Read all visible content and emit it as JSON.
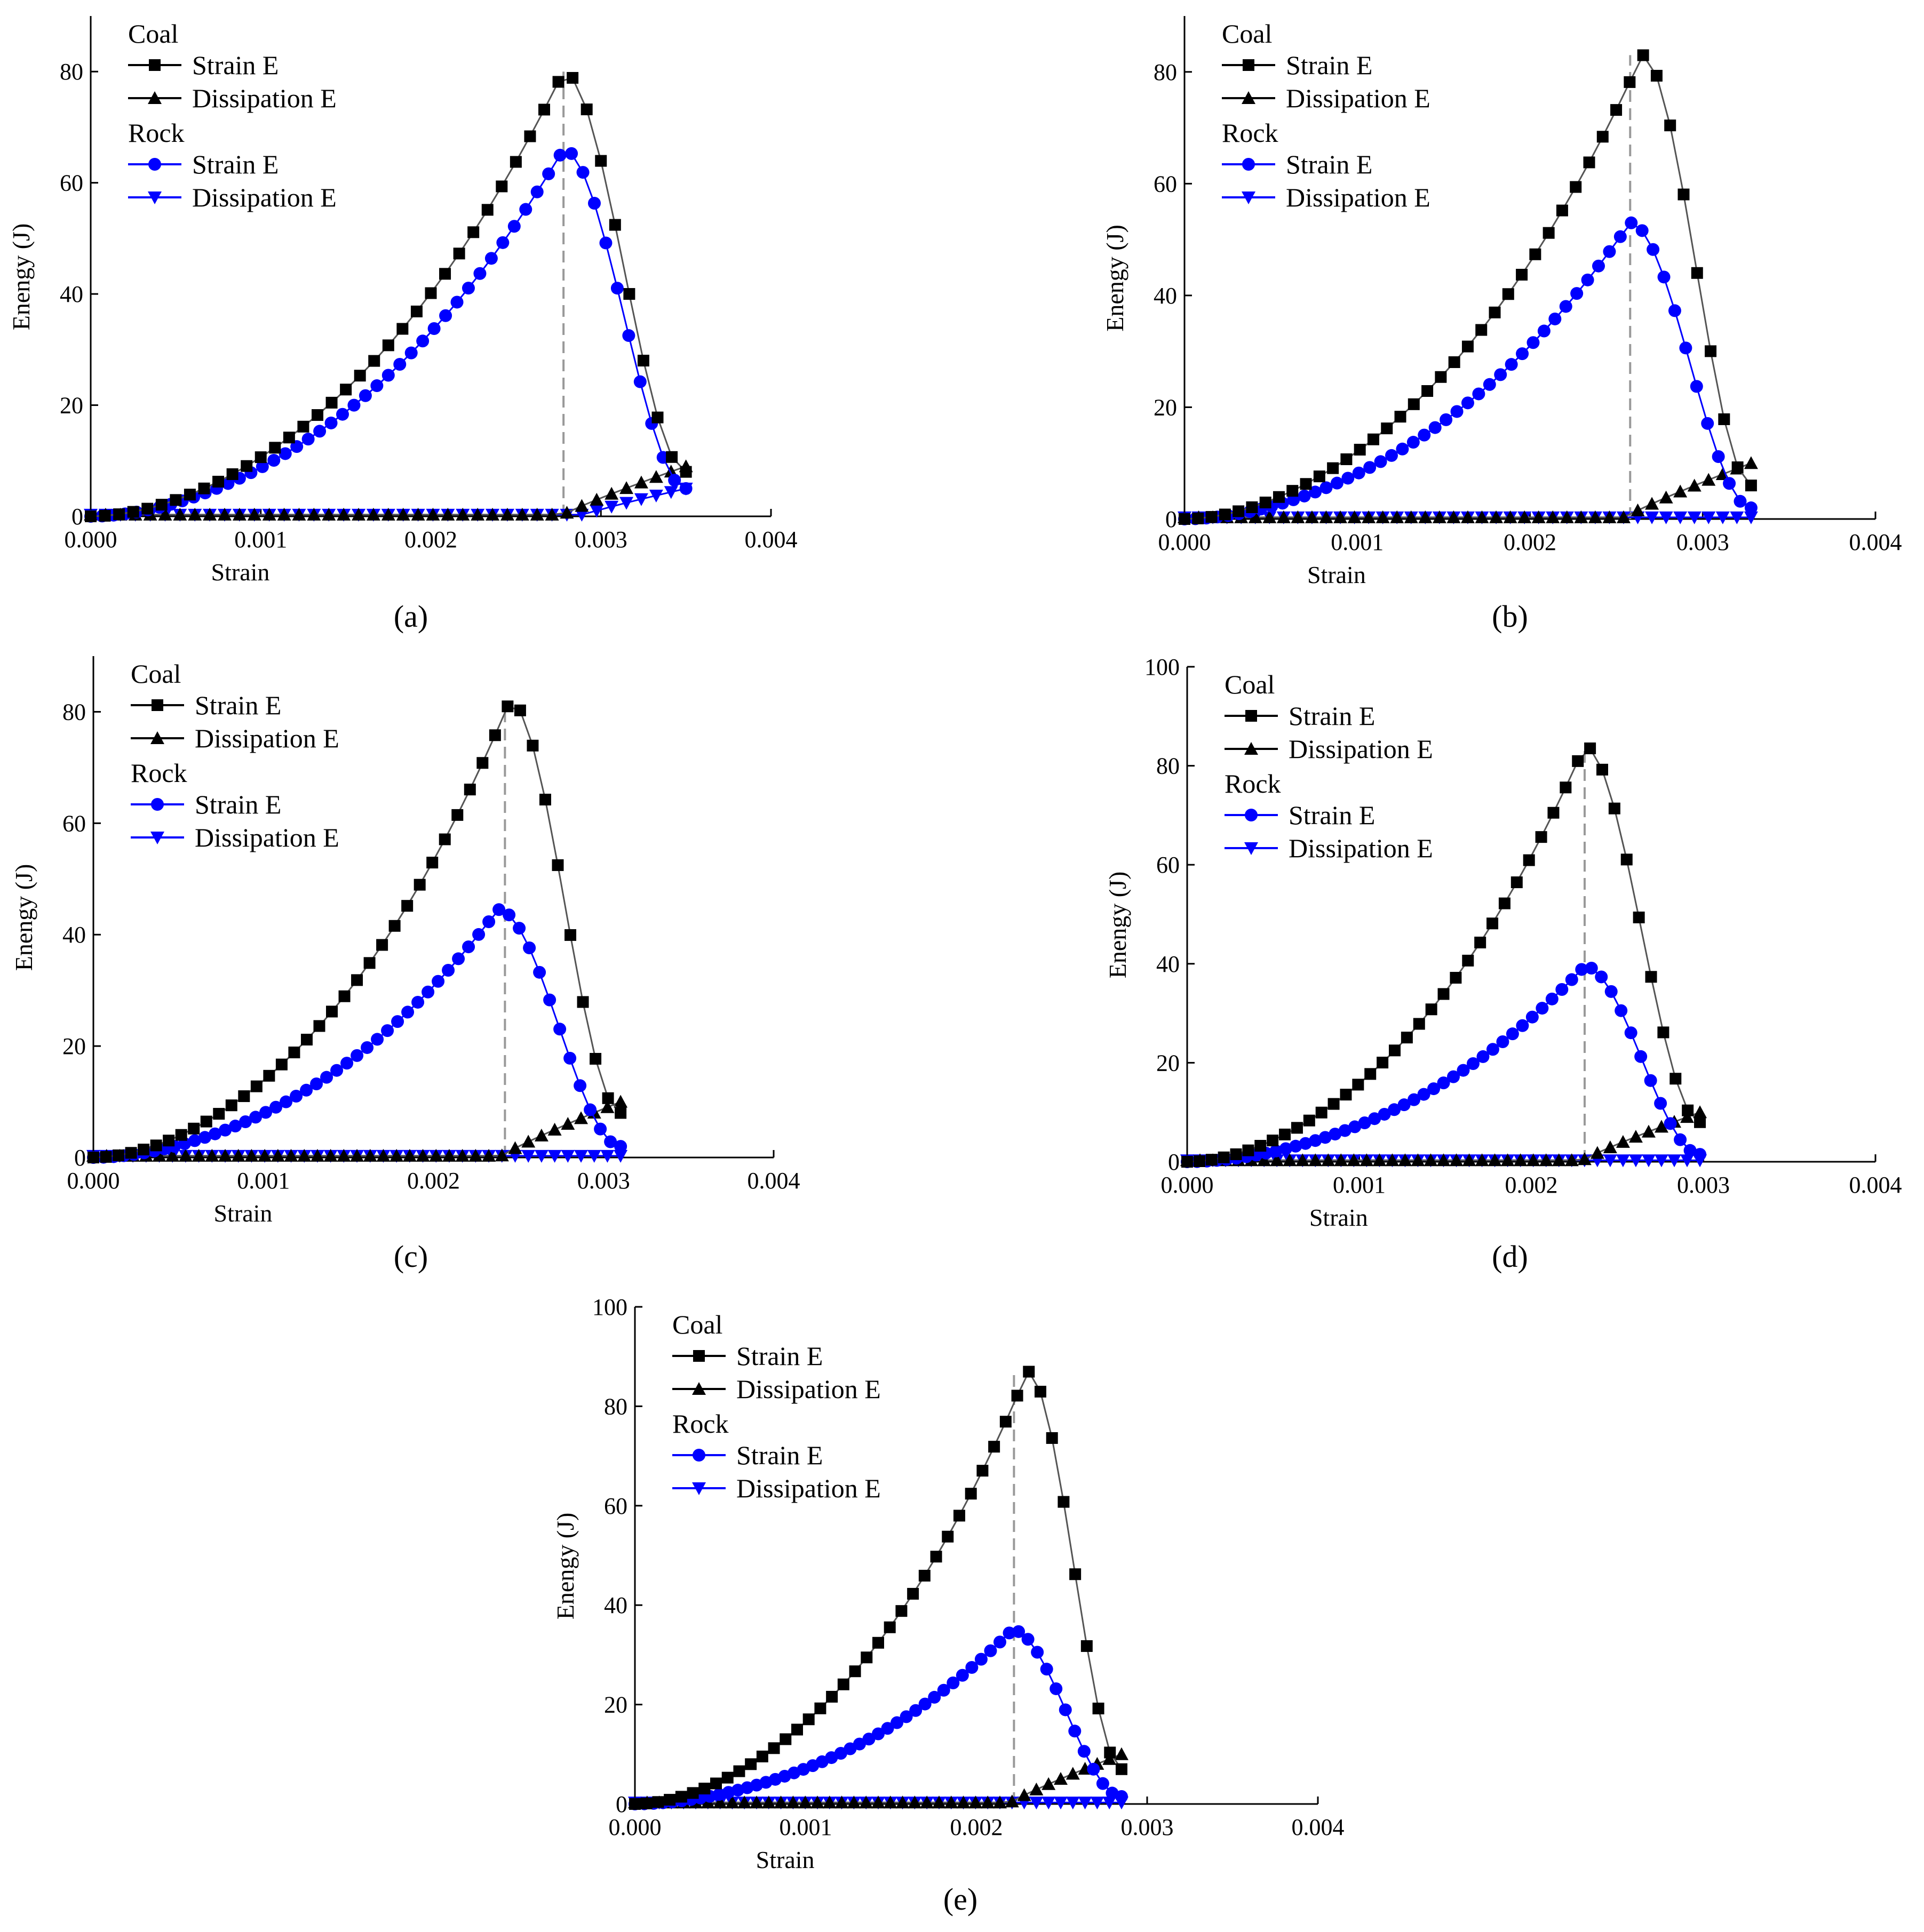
{
  "figure": {
    "panels": [
      "(a)",
      "(b)",
      "(c)",
      "(d)",
      "(e)"
    ]
  },
  "legend": {
    "groups": [
      {
        "name": "Coal",
        "entries": [
          {
            "label": "Strain E",
            "marker": "square",
            "color": "#000000"
          },
          {
            "label": "Dissipation E",
            "marker": "triangle-up",
            "color": "#000000"
          }
        ]
      },
      {
        "name": "Rock",
        "entries": [
          {
            "label": "Strain E",
            "marker": "circle",
            "color": "#0000ff"
          },
          {
            "label": "Dissipation E",
            "marker": "triangle-down",
            "color": "#0000ff"
          }
        ]
      }
    ]
  },
  "colors": {
    "coal": "#000000",
    "coal_line": "#555555",
    "rock": "#0000ff",
    "peak_line": "#999999"
  },
  "chart_data": [
    {
      "type": "line",
      "panel": "(a)",
      "title": "",
      "xlabel": "Strain",
      "ylabel": "Enengy (J)",
      "xlim": [
        0,
        0.004
      ],
      "ylim": [
        0,
        90
      ],
      "xticks": [
        "0.000",
        "0.001",
        "0.002",
        "0.003",
        "0.004"
      ],
      "yticks": [
        "0",
        "20",
        "40",
        "60",
        "80"
      ],
      "peak_strain": 0.00278,
      "coal_strain": {
        "x_end": 0.0035,
        "peak_x": 0.00278,
        "peak_y": 80,
        "end_y": 8
      },
      "coal_dissipation": {
        "x_end": 0.0035,
        "onset_x": 0.00278,
        "end_y": 9
      },
      "rock_strain": {
        "x_end": 0.0035,
        "peak_x": 0.00278,
        "peak_y": 66,
        "end_y": 5
      },
      "rock_dissipation": {
        "x_end": 0.0035,
        "onset_x": 0.0029,
        "end_y": 5
      }
    },
    {
      "type": "line",
      "panel": "(b)",
      "title": "",
      "xlabel": "Strain",
      "ylabel": "Enengy (J)",
      "xlim": [
        0,
        0.004
      ],
      "ylim": [
        0,
        90
      ],
      "xticks": [
        "0.000",
        "0.001",
        "0.002",
        "0.003",
        "0.004"
      ],
      "yticks": [
        "0",
        "20",
        "40",
        "60",
        "80"
      ],
      "peak_strain": 0.00258,
      "coal_strain": {
        "x_end": 0.00328,
        "peak_x": 0.00265,
        "peak_y": 83,
        "end_y": 6
      },
      "coal_dissipation": {
        "x_end": 0.00328,
        "onset_x": 0.00255,
        "end_y": 10
      },
      "rock_strain": {
        "x_end": 0.00328,
        "peak_x": 0.00258,
        "peak_y": 53,
        "end_y": 2
      },
      "rock_dissipation": {
        "x_end": 0.00328,
        "onset_x": 0.00328,
        "end_y": 0.5
      }
    },
    {
      "type": "line",
      "panel": "(c)",
      "title": "",
      "xlabel": "Strain",
      "ylabel": "Enengy (J)",
      "xlim": [
        0,
        0.004
      ],
      "ylim": [
        0,
        90
      ],
      "xticks": [
        "0.000",
        "0.001",
        "0.002",
        "0.003",
        "0.004"
      ],
      "yticks": [
        "0",
        "20",
        "40",
        "60",
        "80"
      ],
      "peak_strain": 0.00242,
      "coal_strain": {
        "x_end": 0.0031,
        "peak_x": 0.00245,
        "peak_y": 82,
        "end_y": 8
      },
      "coal_dissipation": {
        "x_end": 0.0031,
        "onset_x": 0.0024,
        "end_y": 10
      },
      "rock_strain": {
        "x_end": 0.0031,
        "peak_x": 0.00238,
        "peak_y": 44.5,
        "end_y": 2
      },
      "rock_dissipation": {
        "x_end": 0.0031,
        "onset_x": 0.0031,
        "end_y": 0.5
      }
    },
    {
      "type": "line",
      "panel": "(d)",
      "title": "",
      "xlabel": "Strain",
      "ylabel": "Enengy (J)",
      "xlim": [
        0,
        0.004
      ],
      "ylim": [
        0,
        100
      ],
      "xticks": [
        "0.000",
        "0.001",
        "0.002",
        "0.003",
        "0.004"
      ],
      "yticks": [
        "0",
        "20",
        "40",
        "60",
        "80",
        "100"
      ],
      "peak_strain": 0.00231,
      "coal_strain": {
        "x_end": 0.00298,
        "peak_x": 0.00231,
        "peak_y": 84,
        "end_y": 8
      },
      "coal_dissipation": {
        "x_end": 0.00298,
        "onset_x": 0.0023,
        "end_y": 10
      },
      "rock_strain": {
        "x_end": 0.00298,
        "peak_x": 0.00231,
        "peak_y": 39.5,
        "end_y": 1.5
      },
      "rock_dissipation": {
        "x_end": 0.00298,
        "onset_x": 0.00298,
        "end_y": 0.5
      }
    },
    {
      "type": "line",
      "panel": "(e)",
      "title": "",
      "xlabel": "Strain",
      "ylabel": "Enengy (J)",
      "xlim": [
        0,
        0.004
      ],
      "ylim": [
        0,
        100
      ],
      "xticks": [
        "0.000",
        "0.001",
        "0.002",
        "0.003",
        "0.004"
      ],
      "yticks": [
        "0",
        "20",
        "40",
        "60",
        "80",
        "100"
      ],
      "peak_strain": 0.00222,
      "coal_strain": {
        "x_end": 0.00285,
        "peak_x": 0.0023,
        "peak_y": 87,
        "end_y": 7
      },
      "coal_dissipation": {
        "x_end": 0.00285,
        "onset_x": 0.0022,
        "end_y": 10
      },
      "rock_strain": {
        "x_end": 0.00285,
        "peak_x": 0.00221,
        "peak_y": 35,
        "end_y": 1.5
      },
      "rock_dissipation": {
        "x_end": 0.00285,
        "onset_x": 0.00285,
        "end_y": 0.5
      }
    }
  ]
}
